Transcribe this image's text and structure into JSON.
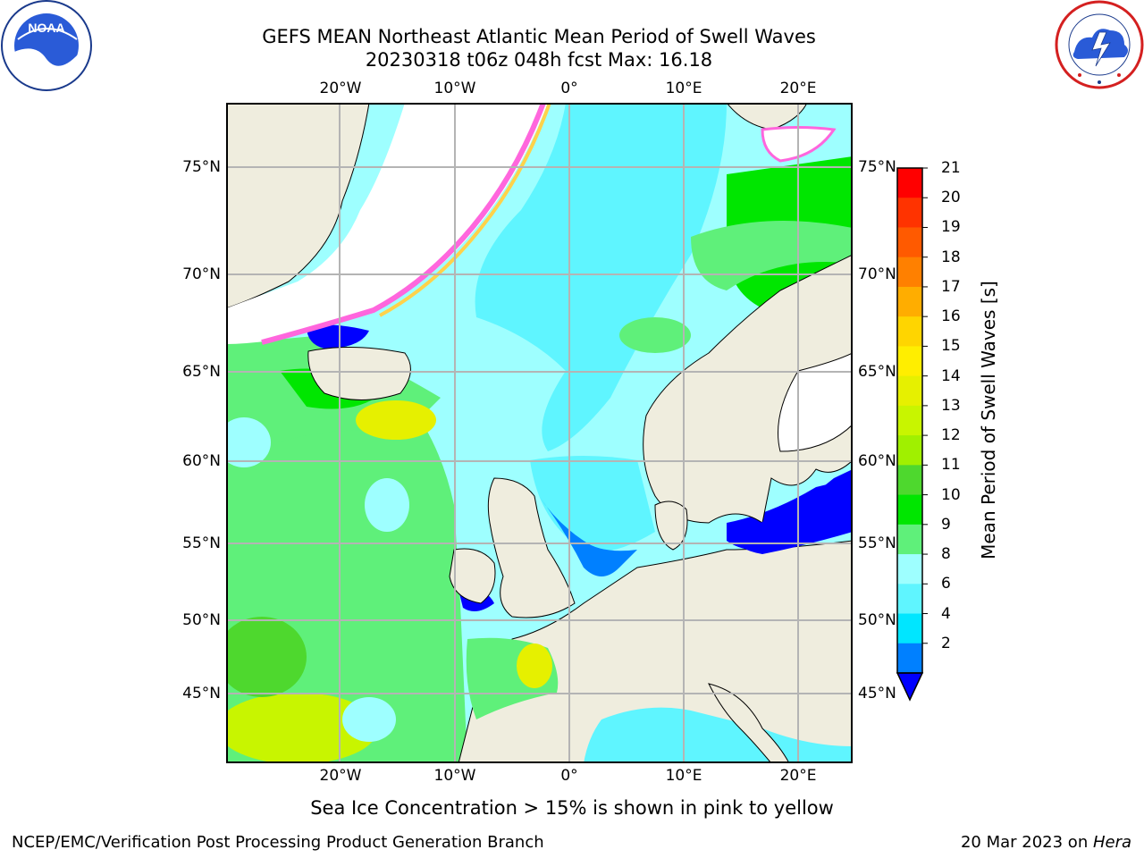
{
  "header": {
    "title_line1": "GEFS MEAN Northeast Atlantic Mean Period of Swell Waves",
    "title_line2": "20230318 t06z 048h fcst   Max: 16.18"
  },
  "map": {
    "lon_ticks": [
      "20°W",
      "10°W",
      "0°",
      "10°E",
      "20°E"
    ],
    "lat_ticks": [
      "75°N",
      "70°N",
      "65°N",
      "60°N",
      "55°N",
      "50°N",
      "45°N"
    ],
    "land_color": "#efedde",
    "sea_ice_note": "Sea Ice Concentration > 15% is shown in pink to yellow"
  },
  "colorbar": {
    "title": "Mean Period of Swell Waves [s]",
    "levels": [
      "21",
      "20",
      "19",
      "18",
      "17",
      "16",
      "15",
      "14",
      "13",
      "12",
      "11",
      "10",
      "9",
      "8",
      "6",
      "4",
      "2"
    ],
    "colors": [
      "#ff0000",
      "#ff3300",
      "#ff5a00",
      "#ff8000",
      "#ffad00",
      "#ffd500",
      "#ffee00",
      "#e6f000",
      "#c8f500",
      "#a0f000",
      "#4ed82e",
      "#00e600",
      "#5ff07a",
      "#9effff",
      "#5ff5ff",
      "#00e6ff",
      "#0080ff",
      "#0000ff"
    ]
  },
  "logos": {
    "noaa": "NOAA",
    "noaa_ring": "NATIONAL OCEANIC AND ATMOSPHERIC ADMINISTRATION",
    "nws_ring": "NATIONAL WEATHER SERVICE"
  },
  "footer": {
    "left": "NCEP/EMC/Verification Post Processing Product Generation Branch",
    "right_date": "20 Mar 2023 on ",
    "right_machine": "Hera"
  }
}
